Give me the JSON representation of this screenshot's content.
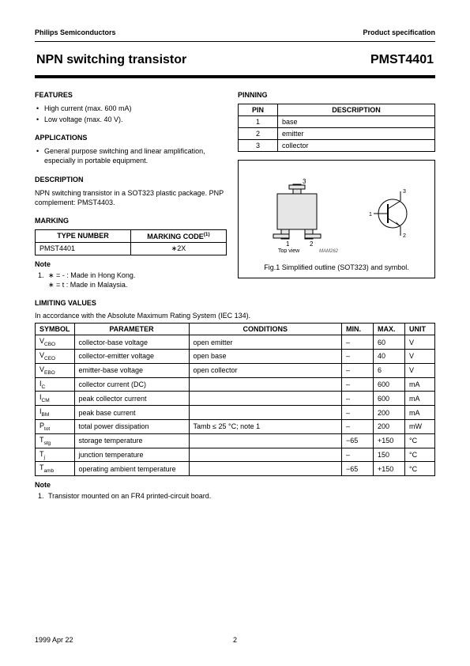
{
  "header": {
    "company": "Philips Semiconductors",
    "doctype": "Product specification"
  },
  "title": {
    "main": "NPN switching transistor",
    "part": "PMST4401"
  },
  "features": {
    "heading": "FEATURES",
    "items": [
      "High current (max. 600 mA)",
      "Low voltage (max. 40 V)."
    ]
  },
  "applications": {
    "heading": "APPLICATIONS",
    "items": [
      "General purpose switching and linear amplification, especially in portable equipment."
    ]
  },
  "description": {
    "heading": "DESCRIPTION",
    "text": "NPN switching transistor in a SOT323 plastic package. PNP complement: PMST4403."
  },
  "marking": {
    "heading": "MARKING",
    "cols": [
      "TYPE NUMBER",
      "MARKING CODE"
    ],
    "footnote_marker": "(1)",
    "rows": [
      [
        "PMST4401",
        "∗2X"
      ]
    ],
    "note_label": "Note",
    "notes": [
      "∗ = - : Made in Hong Kong.\n∗ = t : Made in Malaysia."
    ]
  },
  "pinning": {
    "heading": "PINNING",
    "cols": [
      "PIN",
      "DESCRIPTION"
    ],
    "rows": [
      [
        "1",
        "base"
      ],
      [
        "2",
        "emitter"
      ],
      [
        "3",
        "collector"
      ]
    ]
  },
  "figure": {
    "topview": "Top view",
    "ref": "MAM262",
    "caption": "Fig.1  Simplified outline (SOT323) and symbol.",
    "pin_labels": [
      "1",
      "2",
      "3"
    ],
    "sym_labels": [
      "1",
      "2",
      "3"
    ]
  },
  "limiting": {
    "heading": "LIMITING VALUES",
    "intro": "In accordance with the Absolute Maximum Rating System (IEC 134).",
    "cols": [
      "SYMBOL",
      "PARAMETER",
      "CONDITIONS",
      "MIN.",
      "MAX.",
      "UNIT"
    ],
    "rows": [
      {
        "sym": "V",
        "sub": "CBO",
        "param": "collector-base voltage",
        "cond": "open emitter",
        "min": "–",
        "max": "60",
        "unit": "V"
      },
      {
        "sym": "V",
        "sub": "CEO",
        "param": "collector-emitter voltage",
        "cond": "open base",
        "min": "–",
        "max": "40",
        "unit": "V"
      },
      {
        "sym": "V",
        "sub": "EBO",
        "param": "emitter-base voltage",
        "cond": "open collector",
        "min": "–",
        "max": "6",
        "unit": "V"
      },
      {
        "sym": "I",
        "sub": "C",
        "param": "collector current (DC)",
        "cond": "",
        "min": "–",
        "max": "600",
        "unit": "mA"
      },
      {
        "sym": "I",
        "sub": "CM",
        "param": "peak collector current",
        "cond": "",
        "min": "–",
        "max": "600",
        "unit": "mA"
      },
      {
        "sym": "I",
        "sub": "BM",
        "param": "peak base current",
        "cond": "",
        "min": "–",
        "max": "200",
        "unit": "mA"
      },
      {
        "sym": "P",
        "sub": "tot",
        "param": "total power dissipation",
        "cond": "Tamb ≤ 25 °C; note 1",
        "min": "–",
        "max": "200",
        "unit": "mW"
      },
      {
        "sym": "T",
        "sub": "stg",
        "param": "storage temperature",
        "cond": "",
        "min": "−65",
        "max": "+150",
        "unit": "°C"
      },
      {
        "sym": "T",
        "sub": "j",
        "param": "junction temperature",
        "cond": "",
        "min": "–",
        "max": "150",
        "unit": "°C"
      },
      {
        "sym": "T",
        "sub": "amb",
        "param": "operating ambient temperature",
        "cond": "",
        "min": "−65",
        "max": "+150",
        "unit": "°C"
      }
    ],
    "note_label": "Note",
    "notes": [
      "Transistor mounted on an FR4 printed-circuit board."
    ]
  },
  "footer": {
    "date": "1999 Apr 22",
    "page": "2"
  },
  "colors": {
    "text": "#000000",
    "bg": "#ffffff",
    "rule": "#000000"
  }
}
